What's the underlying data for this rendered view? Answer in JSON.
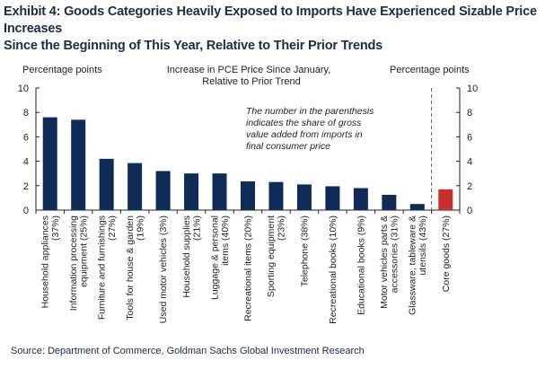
{
  "title_line1": "Exhibit 4: Goods Categories Heavily Exposed to Imports Have Experienced Sizable Price Increases",
  "title_line2": "Since the Beginning of This Year, Relative to Their Prior Trends",
  "source": "Source: Department of Commerce, Goldman Sachs Global Investment Research",
  "colors": {
    "bar": "#0e2c57",
    "highlight": "#c8302f",
    "text": "#1f2a44"
  },
  "chart_data": {
    "type": "bar",
    "title": "Increase  in PCE Price Since January,",
    "subtitle": "Relative  to Prior Trend",
    "ylabel_left": "Percentage points",
    "ylabel_right": "Percentage  points",
    "ylim": [
      0,
      10
    ],
    "yticks": [
      0,
      2,
      4,
      6,
      8,
      10
    ],
    "annotation": [
      "The number in the parenthesis",
      "indicates the share of gross",
      "value added from imports in",
      "final consumer price"
    ],
    "categories": [
      [
        "Household appliances",
        "(37%)"
      ],
      [
        "Information processing",
        "equipment (25%)"
      ],
      [
        "Furniture and furnishings",
        "(27%)"
      ],
      [
        "Tools for house & garden",
        "(19%)"
      ],
      [
        "Used motor vehicles (3%)"
      ],
      [
        "Household supplies",
        "(21%)"
      ],
      [
        "Luggage & personal",
        "items (40%)"
      ],
      [
        "Recreational items (20%)"
      ],
      [
        "Sporting equipment",
        "(23%)"
      ],
      [
        "Telephone (38%)"
      ],
      [
        "Recreational books (10%)"
      ],
      [
        "Educational books (9%)"
      ],
      [
        "Motor vehicles parts &",
        "accessories (31%)"
      ],
      [
        "Glassware, tableware &",
        "utensils (43%)"
      ],
      [
        "Core goods (27%)"
      ]
    ],
    "values": [
      7.6,
      7.4,
      4.2,
      3.85,
      3.2,
      3.0,
      3.0,
      2.35,
      2.3,
      2.1,
      1.95,
      1.8,
      1.25,
      0.5,
      1.7
    ],
    "highlight_index": 14
  }
}
